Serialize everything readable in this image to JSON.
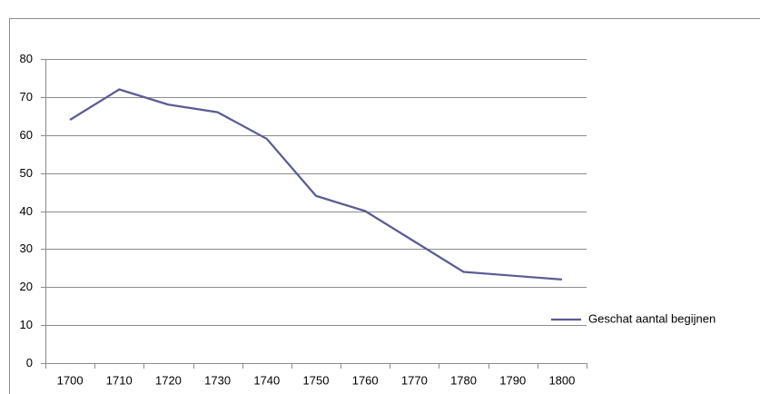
{
  "chart_data": {
    "type": "line",
    "categories": [
      "1700",
      "1710",
      "1720",
      "1730",
      "1740",
      "1750",
      "1760",
      "1770",
      "1780",
      "1790",
      "1800"
    ],
    "series": [
      {
        "name": "Geschat aantal begijnen",
        "color": "#5b5b94",
        "values": [
          64,
          72,
          68,
          66,
          59,
          44,
          40,
          32,
          24,
          23,
          22
        ]
      }
    ],
    "ylim": [
      0,
      80
    ],
    "yticks": [
      0,
      10,
      20,
      30,
      40,
      50,
      60,
      70,
      80
    ],
    "grid": true,
    "legend": "right"
  }
}
